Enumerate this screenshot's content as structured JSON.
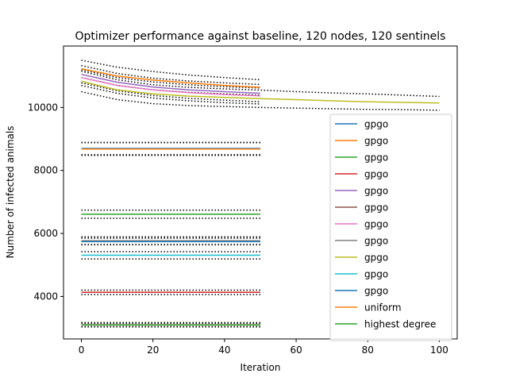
{
  "chart_data": {
    "type": "line",
    "title": "Optimizer performance against baseline, 120 nodes, 120 sentinels",
    "xlabel": "Iteration",
    "ylabel": "Number of infected animals",
    "xlim": [
      -5,
      105
    ],
    "ylim": [
      2650,
      11950
    ],
    "xticks": [
      0,
      20,
      40,
      60,
      80,
      100
    ],
    "yticks": [
      4000,
      6000,
      8000,
      10000
    ],
    "legend_position": "lower-right",
    "series": [
      {
        "name": "gpgo",
        "color": "#1f77b4",
        "x": [
          0,
          50
        ],
        "y": [
          8700,
          8700
        ],
        "ci_low": [
          8480,
          8480
        ],
        "ci_high": [
          8890,
          8890
        ]
      },
      {
        "name": "gpgo",
        "color": "#ff7f0e",
        "x": [
          0,
          10,
          20,
          30,
          40,
          50
        ],
        "y": [
          11230,
          11000,
          10870,
          10780,
          10700,
          10640
        ],
        "ci_low": [
          10950,
          10700,
          10560,
          10480,
          10430,
          10390
        ],
        "ci_high": [
          11500,
          11280,
          11140,
          11030,
          10950,
          10880
        ]
      },
      {
        "name": "gpgo",
        "color": "#2ca02c",
        "x": [
          0,
          50
        ],
        "y": [
          6610,
          6610
        ],
        "ci_low": [
          6480,
          6480
        ],
        "ci_high": [
          6740,
          6740
        ]
      },
      {
        "name": "gpgo",
        "color": "#d62728",
        "x": [
          0,
          50
        ],
        "y": [
          4130,
          4130
        ],
        "ci_low": [
          4060,
          4060
        ],
        "ci_high": [
          4200,
          4200
        ]
      },
      {
        "name": "gpgo",
        "color": "#9467bd",
        "x": [
          0,
          10,
          20,
          30,
          40,
          50
        ],
        "y": [
          11050,
          10800,
          10650,
          10560,
          10500,
          10450
        ],
        "ci_low": [
          10780,
          10530,
          10380,
          10290,
          10230,
          10180
        ],
        "ci_high": [
          11330,
          11080,
          10930,
          10840,
          10780,
          10730
        ]
      },
      {
        "name": "gpgo",
        "color": "#8c564b",
        "x": [
          0,
          50
        ],
        "y": [
          3100,
          3100
        ],
        "ci_low": [
          3040,
          3040
        ],
        "ci_high": [
          3170,
          3170
        ]
      },
      {
        "name": "gpgo",
        "color": "#e377c2",
        "x": [
          0,
          10,
          20,
          30,
          40,
          50
        ],
        "y": [
          10950,
          10700,
          10560,
          10470,
          10410,
          10370
        ],
        "ci_low": [
          10700,
          10450,
          10300,
          10210,
          10150,
          10110
        ],
        "ci_high": [
          11200,
          10950,
          10810,
          10720,
          10660,
          10620
        ]
      },
      {
        "name": "gpgo",
        "color": "#7f7f7f",
        "x": [
          0,
          50
        ],
        "y": [
          5770,
          5770
        ],
        "ci_low": [
          5650,
          5650
        ],
        "ci_high": [
          5890,
          5890
        ]
      },
      {
        "name": "gpgo",
        "color": "#bcbd22",
        "x": [
          0,
          10,
          20,
          30,
          40,
          50,
          60,
          70,
          80,
          90,
          100
        ],
        "y": [
          10830,
          10560,
          10430,
          10360,
          10320,
          10280,
          10250,
          10210,
          10180,
          10160,
          10140
        ],
        "ci_low": [
          10500,
          10250,
          10120,
          10060,
          10030,
          10000,
          9980,
          9960,
          9940,
          9930,
          9910
        ],
        "ci_high": [
          11150,
          10880,
          10720,
          10640,
          10590,
          10550,
          10500,
          10460,
          10430,
          10390,
          10350
        ]
      },
      {
        "name": "gpgo",
        "color": "#17becf",
        "x": [
          0,
          50
        ],
        "y": [
          5310,
          5310
        ],
        "ci_low": [
          5190,
          5190
        ],
        "ci_high": [
          5420,
          5420
        ]
      },
      {
        "name": "gpgo",
        "color": "#1f77b4",
        "x": [
          0,
          50
        ],
        "y": [
          5740,
          5740
        ],
        "ci_low": [
          5640,
          5640
        ],
        "ci_high": [
          5850,
          5850
        ]
      },
      {
        "name": "uniform",
        "color": "#ff7f0e",
        "x": [
          0,
          50
        ],
        "y": [
          8680,
          8680
        ],
        "ci_low": [
          8500,
          8500
        ],
        "ci_high": [
          8880,
          8880
        ]
      },
      {
        "name": "highest degree",
        "color": "#2ca02c",
        "x": [
          0,
          50
        ],
        "y": [
          3090,
          3090
        ],
        "ci_low": [
          3030,
          3030
        ],
        "ci_high": [
          3150,
          3150
        ]
      }
    ]
  }
}
